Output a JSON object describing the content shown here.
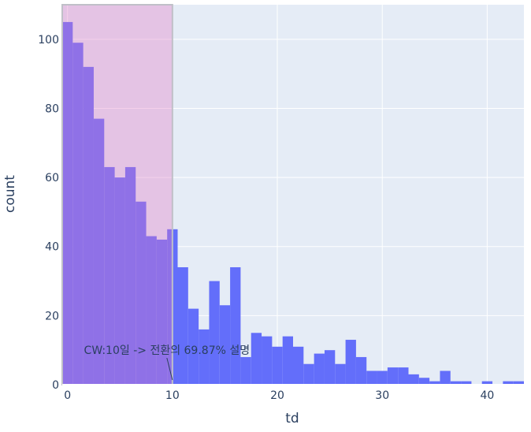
{
  "chart_data": {
    "type": "bar",
    "xlabel": "td",
    "ylabel": "count",
    "xlim": [
      -0.5,
      43.5
    ],
    "ylim": [
      0,
      110
    ],
    "x_ticks": [
      0,
      10,
      20,
      30,
      40
    ],
    "y_ticks": [
      0,
      20,
      40,
      60,
      80,
      100
    ],
    "grid": true,
    "bin_width": 1,
    "bin_start": -0.5,
    "x": [
      0,
      1,
      2,
      3,
      4,
      5,
      6,
      7,
      8,
      9,
      10,
      11,
      12,
      13,
      14,
      15,
      16,
      17,
      18,
      19,
      20,
      21,
      22,
      23,
      24,
      25,
      26,
      27,
      28,
      29,
      30,
      31,
      32,
      33,
      34,
      35,
      36,
      37,
      38,
      39,
      40,
      41,
      42,
      43
    ],
    "values": [
      105,
      99,
      92,
      77,
      63,
      60,
      63,
      53,
      43,
      42,
      45,
      34,
      22,
      16,
      30,
      23,
      34,
      8,
      15,
      14,
      11,
      14,
      11,
      6,
      9,
      10,
      6,
      13,
      8,
      4,
      4,
      5,
      5,
      3,
      2,
      1,
      4,
      1,
      1,
      0,
      1,
      0,
      1,
      1
    ],
    "bar_color": "#636efa",
    "highlight_region": {
      "x0": -0.5,
      "x1": 10,
      "color": "#e377c2",
      "opacity": 0.35
    },
    "annotation": {
      "text": "CW:10일 -> 전환의 69.87% 설명",
      "x": 10,
      "y": 0
    }
  }
}
